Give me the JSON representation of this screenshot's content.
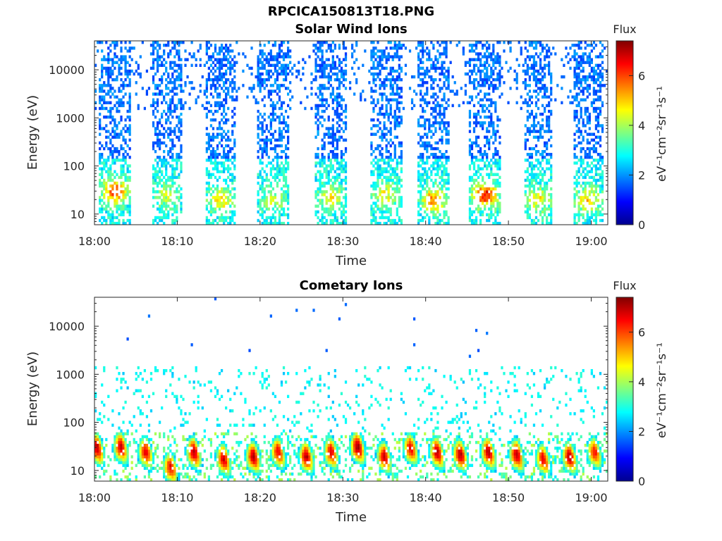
{
  "figure": {
    "title": "RPCICA150813T18.PNG"
  },
  "chart_data": [
    {
      "type": "heatmap",
      "title": "Solar Wind Ions",
      "xlabel": "Time",
      "ylabel": "Energy (eV)",
      "x_ticks": [
        "18:00",
        "18:10",
        "18:20",
        "18:30",
        "18:40",
        "18:50",
        "19:00"
      ],
      "x_range": [
        "18:00",
        "19:02"
      ],
      "y_scale": "log",
      "y_ticks": [
        "10",
        "100",
        "1000",
        "10000"
      ],
      "y_range": [
        6,
        40000
      ],
      "colorbar": {
        "label": "eV⁻¹cm⁻²sr⁻¹s⁻¹",
        "title": "Flux",
        "range": [
          0,
          7.4
        ],
        "ticks": [
          "0",
          "2",
          "4",
          "6"
        ],
        "colormap": "jet"
      },
      "bursts": [
        {
          "center_min": 2.5,
          "width_min": 3.8,
          "low_energy_peak": 5.6,
          "peak_energy_eV": 30
        },
        {
          "center_min": 8.8,
          "width_min": 3.6,
          "low_energy_peak": 3.8,
          "peak_energy_eV": 25
        },
        {
          "center_min": 15.2,
          "width_min": 3.6,
          "low_energy_peak": 4.6,
          "peak_energy_eV": 20
        },
        {
          "center_min": 21.6,
          "width_min": 3.8,
          "low_energy_peak": 3.8,
          "peak_energy_eV": 20
        },
        {
          "center_min": 28.6,
          "width_min": 3.8,
          "low_energy_peak": 4.4,
          "peak_energy_eV": 22
        },
        {
          "center_min": 35.2,
          "width_min": 4.0,
          "low_energy_peak": 4.2,
          "peak_energy_eV": 25
        },
        {
          "center_min": 41.0,
          "width_min": 3.8,
          "low_energy_peak": 5.2,
          "peak_energy_eV": 20
        },
        {
          "center_min": 47.2,
          "width_min": 3.8,
          "low_energy_peak": 6.2,
          "peak_energy_eV": 25
        },
        {
          "center_min": 53.6,
          "width_min": 3.6,
          "low_energy_peak": 4.4,
          "peak_energy_eV": 20
        },
        {
          "center_min": 59.6,
          "width_min": 3.6,
          "low_energy_peak": 4.6,
          "peak_energy_eV": 20
        }
      ]
    },
    {
      "type": "heatmap",
      "title": "Cometary Ions",
      "xlabel": "Time",
      "ylabel": "Energy (eV)",
      "x_ticks": [
        "18:00",
        "18:10",
        "18:20",
        "18:30",
        "18:40",
        "18:50",
        "19:00"
      ],
      "x_range": [
        "18:00",
        "19:02"
      ],
      "y_scale": "log",
      "y_ticks": [
        "10",
        "100",
        "1000",
        "10000"
      ],
      "y_range": [
        6,
        40000
      ],
      "colorbar": {
        "label": "eV⁻¹cm⁻²sr⁻¹s⁻¹",
        "title": "Flux",
        "range": [
          0,
          7.4
        ],
        "ticks": [
          "0",
          "2",
          "4",
          "6"
        ],
        "colormap": "jet"
      },
      "bursts": [
        {
          "center_min": 0.3,
          "peak_flux": 6.8,
          "peak_energy_eV": 30
        },
        {
          "center_min": 3.2,
          "peak_flux": 6.6,
          "peak_energy_eV": 32
        },
        {
          "center_min": 6.2,
          "peak_flux": 6.5,
          "peak_energy_eV": 25
        },
        {
          "center_min": 9.2,
          "peak_flux": 6.4,
          "peak_energy_eV": 12
        },
        {
          "center_min": 12.0,
          "peak_flux": 6.8,
          "peak_energy_eV": 25
        },
        {
          "center_min": 15.6,
          "peak_flux": 6.6,
          "peak_energy_eV": 18
        },
        {
          "center_min": 19.2,
          "peak_flux": 6.8,
          "peak_energy_eV": 20
        },
        {
          "center_min": 22.2,
          "peak_flux": 6.4,
          "peak_energy_eV": 25
        },
        {
          "center_min": 25.6,
          "peak_flux": 6.8,
          "peak_energy_eV": 20
        },
        {
          "center_min": 28.6,
          "peak_flux": 6.5,
          "peak_energy_eV": 25
        },
        {
          "center_min": 31.8,
          "peak_flux": 7.0,
          "peak_energy_eV": 32
        },
        {
          "center_min": 35.0,
          "peak_flux": 6.6,
          "peak_energy_eV": 20
        },
        {
          "center_min": 38.2,
          "peak_flux": 6.4,
          "peak_energy_eV": 30
        },
        {
          "center_min": 41.4,
          "peak_flux": 6.8,
          "peak_energy_eV": 25
        },
        {
          "center_min": 44.2,
          "peak_flux": 6.8,
          "peak_energy_eV": 22
        },
        {
          "center_min": 47.6,
          "peak_flux": 6.8,
          "peak_energy_eV": 25
        },
        {
          "center_min": 51.0,
          "peak_flux": 6.8,
          "peak_energy_eV": 22
        },
        {
          "center_min": 54.2,
          "peak_flux": 6.4,
          "peak_energy_eV": 18
        },
        {
          "center_min": 57.4,
          "peak_flux": 6.8,
          "peak_energy_eV": 20
        },
        {
          "center_min": 60.4,
          "peak_flux": 6.2,
          "peak_energy_eV": 25
        }
      ]
    }
  ]
}
